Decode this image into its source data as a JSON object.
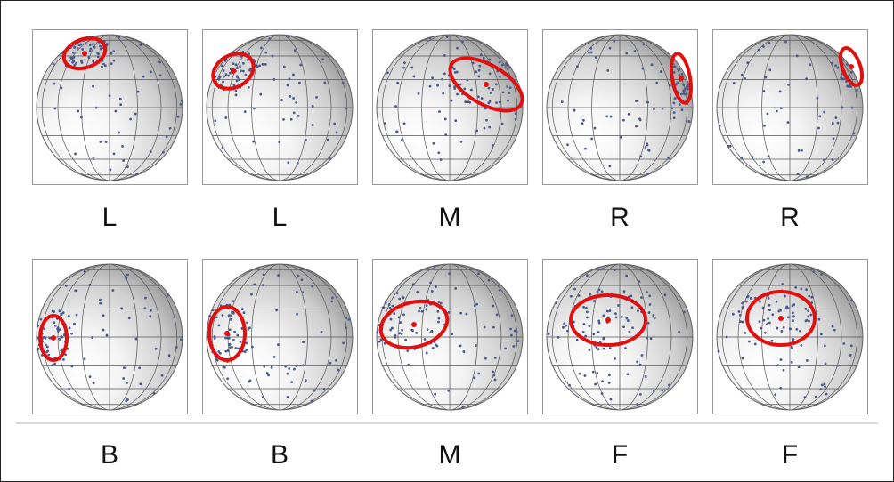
{
  "panels": [
    {
      "label": "L"
    },
    {
      "label": "L"
    },
    {
      "label": "M"
    },
    {
      "label": "R"
    },
    {
      "label": "R"
    },
    {
      "label": "B"
    },
    {
      "label": "B"
    },
    {
      "label": "M"
    },
    {
      "label": "F"
    },
    {
      "label": "F"
    }
  ]
}
